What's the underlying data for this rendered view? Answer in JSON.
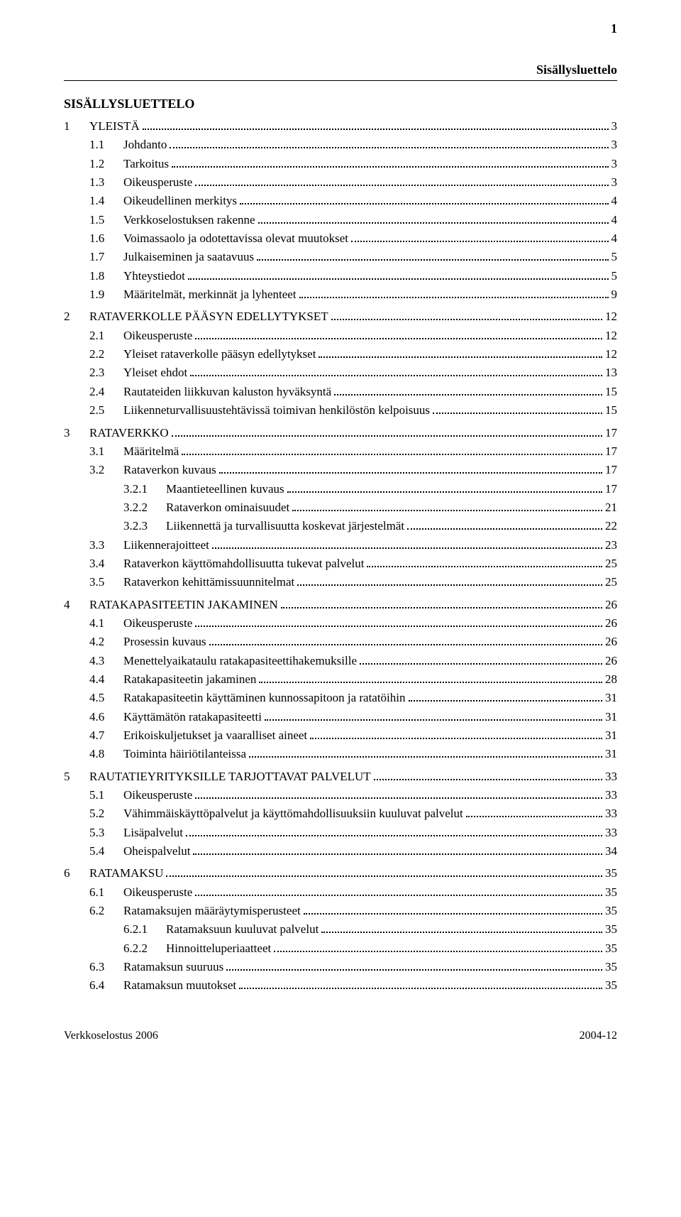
{
  "page_number": "1",
  "header_label": "Sisällysluettelo",
  "title": "SISÄLLYSLUETTELO",
  "footer_left": "Verkkoselostus 2006",
  "footer_right": "2004-12",
  "toc": [
    {
      "level": 1,
      "num": "1",
      "label": "YLEISTÄ",
      "page": "3"
    },
    {
      "level": 2,
      "num": "1.1",
      "label": "Johdanto",
      "page": "3"
    },
    {
      "level": 2,
      "num": "1.2",
      "label": "Tarkoitus",
      "page": "3"
    },
    {
      "level": 2,
      "num": "1.3",
      "label": "Oikeusperuste",
      "page": "3"
    },
    {
      "level": 2,
      "num": "1.4",
      "label": "Oikeudellinen merkitys",
      "page": "4"
    },
    {
      "level": 2,
      "num": "1.5",
      "label": "Verkkoselostuksen rakenne",
      "page": "4"
    },
    {
      "level": 2,
      "num": "1.6",
      "label": "Voimassaolo ja odotettavissa olevat muutokset",
      "page": "4"
    },
    {
      "level": 2,
      "num": "1.7",
      "label": "Julkaiseminen ja saatavuus",
      "page": "5"
    },
    {
      "level": 2,
      "num": "1.8",
      "label": "Yhteystiedot",
      "page": "5"
    },
    {
      "level": 2,
      "num": "1.9",
      "label": "Määritelmät, merkinnät ja lyhenteet",
      "page": "9"
    },
    {
      "level": 1,
      "num": "2",
      "label": "RATAVERKOLLE PÄÄSYN EDELLYTYKSET",
      "page": "12"
    },
    {
      "level": 2,
      "num": "2.1",
      "label": "Oikeusperuste",
      "page": "12"
    },
    {
      "level": 2,
      "num": "2.2",
      "label": "Yleiset rataverkolle pääsyn edellytykset",
      "page": "12"
    },
    {
      "level": 2,
      "num": "2.3",
      "label": "Yleiset ehdot",
      "page": "13"
    },
    {
      "level": 2,
      "num": "2.4",
      "label": "Rautateiden liikkuvan kaluston hyväksyntä",
      "page": "15"
    },
    {
      "level": 2,
      "num": "2.5",
      "label": "Liikenneturvallisuustehtävissä toimivan henkilöstön kelpoisuus",
      "page": "15"
    },
    {
      "level": 1,
      "num": "3",
      "label": "RATAVERKKO",
      "page": "17"
    },
    {
      "level": 2,
      "num": "3.1",
      "label": "Määritelmä",
      "page": "17"
    },
    {
      "level": 2,
      "num": "3.2",
      "label": "Rataverkon kuvaus",
      "page": "17"
    },
    {
      "level": 3,
      "num": "3.2.1",
      "label": "Maantieteellinen kuvaus",
      "page": "17"
    },
    {
      "level": 3,
      "num": "3.2.2",
      "label": "Rataverkon ominaisuudet",
      "page": "21"
    },
    {
      "level": 3,
      "num": "3.2.3",
      "label": "Liikennettä ja turvallisuutta koskevat järjestelmät",
      "page": "22"
    },
    {
      "level": 2,
      "num": "3.3",
      "label": "Liikennerajoitteet",
      "page": "23"
    },
    {
      "level": 2,
      "num": "3.4",
      "label": "Rataverkon käyttömahdollisuutta tukevat palvelut",
      "page": "25"
    },
    {
      "level": 2,
      "num": "3.5",
      "label": "Rataverkon kehittämissuunnitelmat",
      "page": "25"
    },
    {
      "level": 1,
      "num": "4",
      "label": "RATAKAPASITEETIN JAKAMINEN",
      "page": "26"
    },
    {
      "level": 2,
      "num": "4.1",
      "label": "Oikeusperuste",
      "page": "26"
    },
    {
      "level": 2,
      "num": "4.2",
      "label": "Prosessin kuvaus",
      "page": "26"
    },
    {
      "level": 2,
      "num": "4.3",
      "label": "Menettelyaikataulu ratakapasiteettihakemuksille",
      "page": "26"
    },
    {
      "level": 2,
      "num": "4.4",
      "label": "Ratakapasiteetin jakaminen",
      "page": "28"
    },
    {
      "level": 2,
      "num": "4.5",
      "label": "Ratakapasiteetin käyttäminen kunnossapitoon ja ratatöihin",
      "page": "31"
    },
    {
      "level": 2,
      "num": "4.6",
      "label": "Käyttämätön ratakapasiteetti",
      "page": "31"
    },
    {
      "level": 2,
      "num": "4.7",
      "label": "Erikoiskuljetukset ja vaaralliset aineet",
      "page": "31"
    },
    {
      "level": 2,
      "num": "4.8",
      "label": "Toiminta häiriötilanteissa",
      "page": "31"
    },
    {
      "level": 1,
      "num": "5",
      "label": "RAUTATIEYRITYKSILLE TARJOTTAVAT PALVELUT",
      "page": "33"
    },
    {
      "level": 2,
      "num": "5.1",
      "label": "Oikeusperuste",
      "page": "33"
    },
    {
      "level": 2,
      "num": "5.2",
      "label": "Vähimmäiskäyttöpalvelut ja käyttömahdollisuuksiin kuuluvat palvelut",
      "page": "33"
    },
    {
      "level": 2,
      "num": "5.3",
      "label": "Lisäpalvelut",
      "page": "33"
    },
    {
      "level": 2,
      "num": "5.4",
      "label": "Oheispalvelut",
      "page": "34"
    },
    {
      "level": 1,
      "num": "6",
      "label": "RATAMAKSU",
      "page": "35"
    },
    {
      "level": 2,
      "num": "6.1",
      "label": "Oikeusperuste",
      "page": "35"
    },
    {
      "level": 2,
      "num": "6.2",
      "label": "Ratamaksujen määräytymisperusteet",
      "page": "35"
    },
    {
      "level": 3,
      "num": "6.2.1",
      "label": "Ratamaksuun kuuluvat palvelut",
      "page": "35"
    },
    {
      "level": 3,
      "num": "6.2.2",
      "label": "Hinnoitteluperiaatteet",
      "page": "35"
    },
    {
      "level": 2,
      "num": "6.3",
      "label": "Ratamaksun suuruus",
      "page": "35"
    },
    {
      "level": 2,
      "num": "6.4",
      "label": "Ratamaksun muutokset",
      "page": "35"
    }
  ]
}
